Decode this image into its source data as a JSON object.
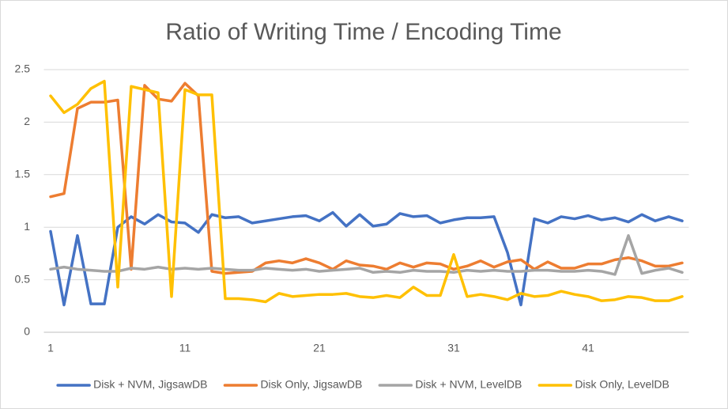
{
  "chart_data": {
    "type": "line",
    "title": "Ratio of Writing Time / Encoding Time",
    "categories": [
      "1",
      null,
      null,
      null,
      null,
      null,
      null,
      null,
      null,
      null,
      "11",
      null,
      null,
      null,
      null,
      null,
      null,
      null,
      null,
      null,
      "21",
      null,
      null,
      null,
      null,
      null,
      null,
      null,
      null,
      null,
      "31",
      null,
      null,
      null,
      null,
      null,
      null,
      null,
      null,
      null,
      "41",
      null,
      null,
      null,
      null,
      null,
      null,
      null
    ],
    "series": [
      {
        "name": "Disk + NVM, JigsawDB",
        "color": "#4472c4",
        "values": [
          0.96,
          0.26,
          0.92,
          0.27,
          0.27,
          1.0,
          1.1,
          1.03,
          1.12,
          1.05,
          1.04,
          0.95,
          1.12,
          1.09,
          1.1,
          1.04,
          1.06,
          1.08,
          1.1,
          1.11,
          1.06,
          1.14,
          1.01,
          1.12,
          1.01,
          1.03,
          1.13,
          1.1,
          1.11,
          1.04,
          1.07,
          1.09,
          1.09,
          1.1,
          0.76,
          0.26,
          1.08,
          1.04,
          1.1,
          1.08,
          1.11,
          1.07,
          1.09,
          1.05,
          1.12,
          1.06,
          1.1,
          1.06
        ]
      },
      {
        "name": "Disk Only, JigsawDB",
        "color": "#ed7d31",
        "values": [
          1.29,
          1.32,
          2.13,
          2.19,
          2.19,
          2.21,
          0.6,
          2.35,
          2.22,
          2.2,
          2.37,
          2.25,
          0.58,
          0.56,
          0.57,
          0.58,
          0.66,
          0.68,
          0.66,
          0.7,
          0.66,
          0.6,
          0.68,
          0.64,
          0.63,
          0.6,
          0.66,
          0.62,
          0.66,
          0.65,
          0.6,
          0.63,
          0.68,
          0.62,
          0.67,
          0.69,
          0.6,
          0.67,
          0.61,
          0.61,
          0.65,
          0.65,
          0.69,
          0.71,
          0.68,
          0.63,
          0.63,
          0.66
        ]
      },
      {
        "name": "Disk + NVM, LevelDB",
        "color": "#a5a5a5",
        "values": [
          0.6,
          0.62,
          0.6,
          0.59,
          0.58,
          0.58,
          0.61,
          0.6,
          0.62,
          0.6,
          0.61,
          0.6,
          0.61,
          0.6,
          0.59,
          0.59,
          0.61,
          0.6,
          0.59,
          0.6,
          0.58,
          0.59,
          0.6,
          0.61,
          0.57,
          0.58,
          0.57,
          0.59,
          0.58,
          0.58,
          0.57,
          0.59,
          0.58,
          0.59,
          0.58,
          0.58,
          0.59,
          0.59,
          0.58,
          0.58,
          0.59,
          0.58,
          0.55,
          0.92,
          0.56,
          0.59,
          0.61,
          0.57
        ]
      },
      {
        "name": "Disk Only, LevelDB",
        "color": "#ffc000",
        "values": [
          2.25,
          2.09,
          2.17,
          2.32,
          2.39,
          0.43,
          2.34,
          2.31,
          2.28,
          0.34,
          2.31,
          2.26,
          2.26,
          0.32,
          0.32,
          0.31,
          0.29,
          0.37,
          0.34,
          0.35,
          0.36,
          0.36,
          0.37,
          0.34,
          0.33,
          0.35,
          0.33,
          0.43,
          0.35,
          0.35,
          0.74,
          0.34,
          0.36,
          0.34,
          0.31,
          0.37,
          0.34,
          0.35,
          0.39,
          0.36,
          0.34,
          0.3,
          0.31,
          0.34,
          0.33,
          0.3,
          0.3,
          0.34
        ]
      }
    ],
    "ylim": [
      0,
      2.5
    ],
    "yticks": [
      0,
      0.5,
      1,
      1.5,
      2,
      2.5
    ],
    "grid": true,
    "legend": "bottom"
  }
}
